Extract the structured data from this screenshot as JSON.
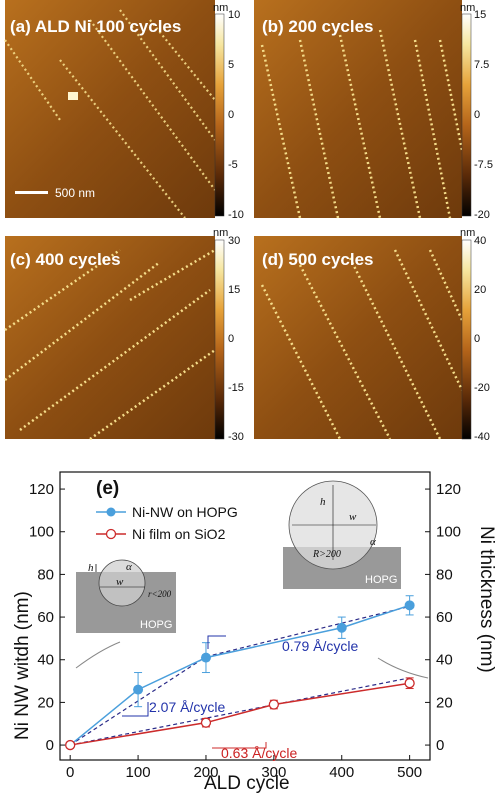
{
  "afm_panels": [
    {
      "label": "(a) ALD Ni 100 cycles",
      "unit": "nm",
      "cb_ticks": [
        "10",
        "5",
        "0",
        "-5",
        "-10"
      ],
      "scale_bar": "500 nm"
    },
    {
      "label": "(b) 200 cycles",
      "unit": "nm",
      "cb_ticks": [
        "15",
        "7.5",
        "0",
        "-7.5",
        "-20"
      ]
    },
    {
      "label": "(c) 400 cycles",
      "unit": "nm",
      "cb_ticks": [
        "30",
        "15",
        "0",
        "-15",
        "-30"
      ]
    },
    {
      "label": "(d) 500 cycles",
      "unit": "nm",
      "cb_ticks": [
        "40",
        "20",
        "0",
        "-20",
        "-40"
      ]
    }
  ],
  "colors": {
    "nw": "#4a9fdc",
    "film": "#cc2b2b",
    "fit_blue": "#2233aa"
  },
  "insets": {
    "left": {
      "h": "h",
      "w": "w",
      "alpha": "α",
      "r": "r<200",
      "substrate": "HOPG"
    },
    "right": {
      "h": "h",
      "w": "w",
      "alpha": "α",
      "r": "R>200",
      "substrate": "HOPG"
    }
  },
  "chart_data": {
    "type": "line",
    "panel_label": "(e)",
    "xlabel": "ALD cycle",
    "ylabel": "Ni NW witdh (nm)",
    "y2label": "Ni thickness (nm)",
    "xlim": [
      -15,
      530
    ],
    "ylim": [
      -7,
      128
    ],
    "y2lim": [
      -7,
      128
    ],
    "xticks": [
      0,
      100,
      200,
      300,
      400,
      500
    ],
    "yticks": [
      0,
      20,
      40,
      60,
      80,
      100,
      120
    ],
    "y2ticks": [
      0,
      20,
      40,
      60,
      80,
      100,
      120
    ],
    "legend_position": "top-left",
    "grid": false,
    "series": [
      {
        "name": "Ni-NW on HOPG",
        "axis": "left",
        "marker": "filled-circle",
        "x": [
          0,
          100,
          200,
          400,
          500
        ],
        "y": [
          0,
          26,
          41,
          55,
          65.5
        ],
        "err": [
          0,
          8,
          7,
          5,
          4.5
        ]
      },
      {
        "name": "Ni film on SiO2",
        "axis": "right",
        "marker": "open-circle",
        "x": [
          0,
          200,
          300,
          500
        ],
        "y": [
          0,
          10.5,
          19,
          29
        ],
        "err": [
          0,
          2,
          2,
          2.5
        ]
      }
    ],
    "fits": [
      {
        "from": [
          0,
          0
        ],
        "to": [
          200,
          41.4
        ]
      },
      {
        "from": [
          200,
          41.4
        ],
        "to": [
          500,
          65
        ]
      },
      {
        "from": [
          0,
          0
        ],
        "to": [
          500,
          31.5
        ]
      }
    ],
    "annotations": [
      {
        "text": "0.79 Å/cycle",
        "at": [
          300,
          48
        ]
      },
      {
        "text": "2.07 Å/cycle",
        "at": [
          145,
          20
        ]
      },
      {
        "text": "0.63 Å/cycle",
        "at": [
          265,
          5
        ]
      }
    ]
  }
}
